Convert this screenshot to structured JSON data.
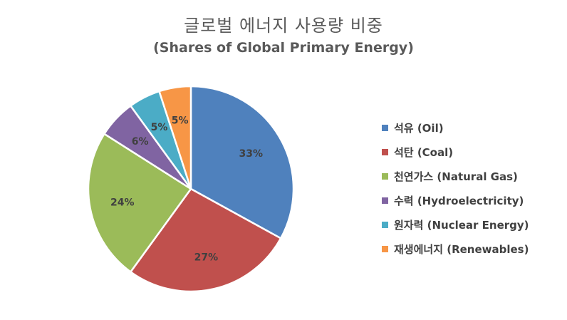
{
  "chart_data": {
    "type": "pie",
    "title": "글로벌 에너지 사용량 비중",
    "subtitle": "(Shares of Global Primary Energy)",
    "legend_position": "right",
    "categories": [
      "석유 (Oil)",
      "석탄 (Coal)",
      "천연가스 (Natural Gas)",
      "수력 (Hydroelectricity)",
      "원자력 (Nuclear Energy)",
      "재생에너지 (Renewables)"
    ],
    "values": [
      33,
      27,
      24,
      6,
      5,
      5
    ],
    "data_labels": [
      "33%",
      "27%",
      "24%",
      "6%",
      "5%",
      "5%"
    ],
    "colors": [
      "#4F81BD",
      "#C0504D",
      "#9BBB59",
      "#8064A2",
      "#4BACC6",
      "#F79646"
    ]
  }
}
